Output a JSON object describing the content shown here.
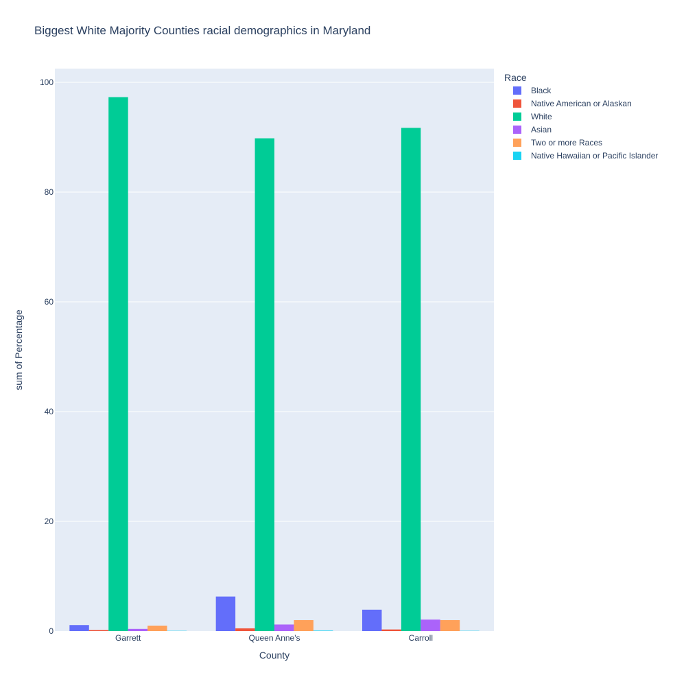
{
  "chart_data": {
    "type": "bar",
    "title": "Biggest White Majority Counties racial demographics in Maryland",
    "xlabel": "County",
    "ylabel": "sum of Percentage",
    "categories": [
      "Garrett",
      "Queen Anne's",
      "Carroll"
    ],
    "ylim": [
      0,
      102.5
    ],
    "yticks": [
      0,
      20,
      40,
      60,
      80,
      100
    ],
    "grid": true,
    "legend_title": "Race",
    "legend_position": "top-right",
    "series": [
      {
        "name": "Black",
        "color": "#636efa",
        "values": [
          1.1,
          6.3,
          3.9
        ]
      },
      {
        "name": "Native American or Alaskan",
        "color": "#ef553b",
        "values": [
          0.2,
          0.5,
          0.3
        ]
      },
      {
        "name": "White",
        "color": "#00cc96",
        "values": [
          97.3,
          89.8,
          91.7
        ]
      },
      {
        "name": "Asian",
        "color": "#ab63fa",
        "values": [
          0.4,
          1.2,
          2.1
        ]
      },
      {
        "name": "Two or more Races",
        "color": "#ffa15a",
        "values": [
          1.0,
          2.0,
          2.0
        ]
      },
      {
        "name": "Native Hawaiian or Pacific Islander",
        "color": "#19d3f3",
        "values": [
          0.05,
          0.1,
          0.05
        ]
      }
    ]
  }
}
